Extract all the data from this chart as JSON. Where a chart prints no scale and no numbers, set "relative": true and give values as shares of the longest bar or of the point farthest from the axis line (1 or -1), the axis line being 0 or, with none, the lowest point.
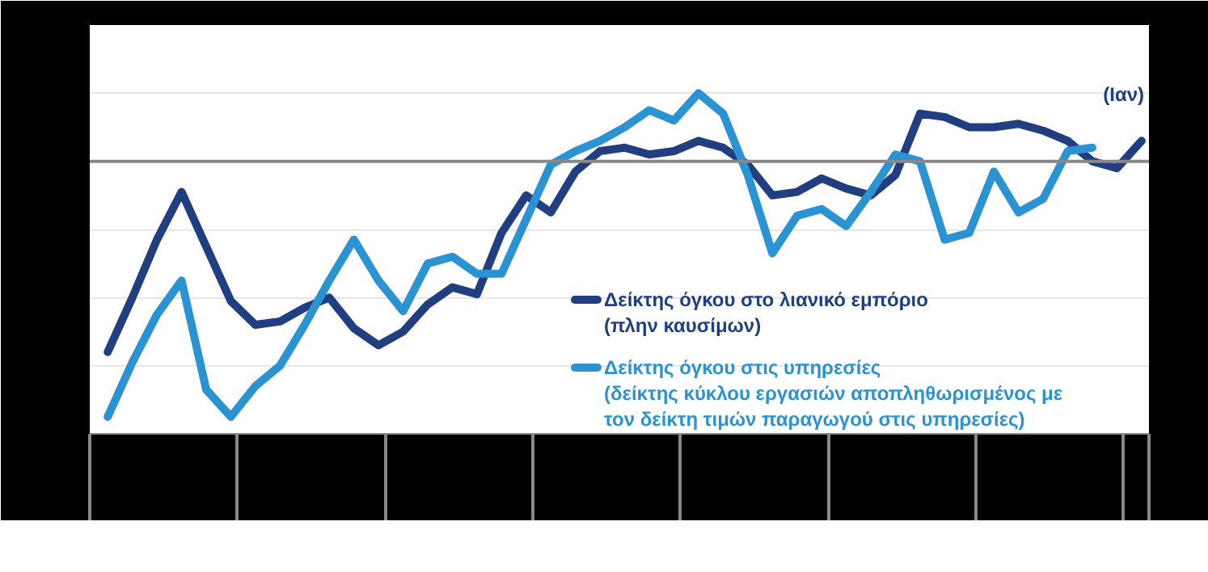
{
  "chart_data": {
    "type": "line",
    "relative": true,
    "categories": [
      null,
      null,
      null,
      null,
      null,
      null,
      null,
      null,
      null,
      null,
      null,
      null,
      null,
      null,
      null,
      null,
      null,
      null,
      null,
      null,
      null,
      null,
      null,
      null,
      null,
      null,
      null,
      null,
      null,
      null,
      null,
      null,
      null,
      null,
      null,
      null,
      null,
      null,
      null,
      null,
      null,
      null,
      null
    ],
    "grid": "y",
    "legend": "bottom right",
    "line_style": "solid",
    "ref_lines": [
      {
        "axis": "y",
        "value": 0.8,
        "color": "#888888"
      }
    ],
    "annotations": [
      "(Ιαν)"
    ],
    "series": [
      {
        "name": "Δείκτης όγκου στο λιανικό εμπόριο (πλην καυσίμων)",
        "color": "#213f80",
        "values": [
          0.24,
          0.4,
          0.57,
          0.71,
          0.55,
          0.39,
          0.32,
          0.33,
          0.37,
          0.4,
          0.31,
          0.26,
          0.3,
          0.38,
          0.43,
          0.41,
          0.59,
          0.7,
          0.65,
          0.77,
          0.83,
          0.84,
          0.82,
          0.83,
          0.86,
          0.84,
          0.79,
          0.7,
          0.71,
          0.75,
          0.72,
          0.7,
          0.76,
          0.94,
          0.93,
          0.9,
          0.9,
          0.91,
          0.89,
          0.86,
          0.8,
          0.78,
          0.86
        ]
      },
      {
        "name": "Δείκτης όγκου στις υπηρεσίες (δείκτης κύκλου εργασιών αποπληθωρισμένος με τον δείκτη τιμών παραγωγού στις υπηρεσίες)",
        "color": "#2b93d1",
        "values": [
          0.05,
          0.21,
          0.35,
          0.45,
          0.13,
          0.05,
          0.14,
          0.2,
          0.32,
          0.45,
          0.57,
          0.45,
          0.36,
          0.5,
          0.52,
          0.47,
          0.47,
          0.63,
          0.79,
          0.83,
          0.86,
          0.9,
          0.95,
          0.92,
          1.0,
          0.94,
          0.76,
          0.53,
          0.64,
          0.66,
          0.61,
          0.71,
          0.82,
          0.8,
          0.57,
          0.59,
          0.77,
          0.65,
          0.69,
          0.83,
          0.84,
          null,
          null
        ]
      }
    ]
  }
}
